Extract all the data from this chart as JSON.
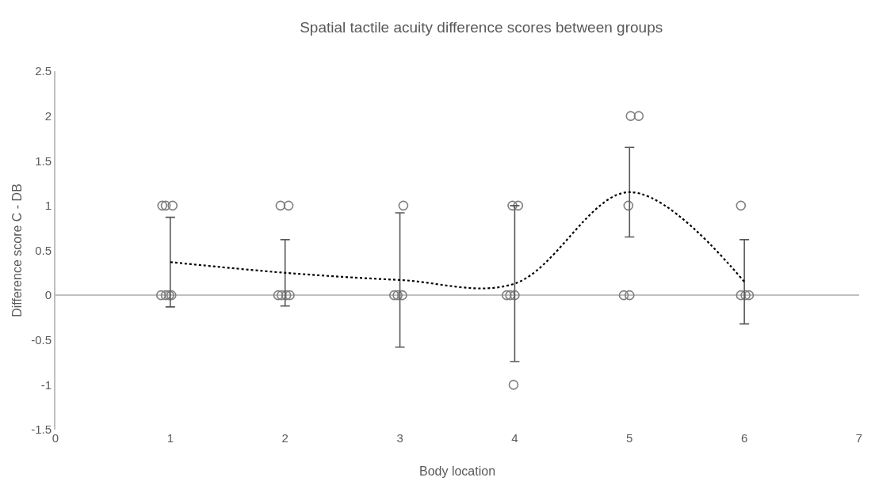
{
  "chart_data": {
    "type": "scatter",
    "title": "Spatial tactile acuity difference scores between groups",
    "xlabel": "Body location",
    "ylabel": "Difference score C - DB",
    "xlim": [
      0,
      7
    ],
    "xticks": [
      0,
      1,
      2,
      3,
      4,
      5,
      6,
      7
    ],
    "ylim": [
      -1.5,
      2.5
    ],
    "yticks": [
      -1.5,
      -1,
      -0.5,
      0,
      0.5,
      1,
      1.5,
      2,
      2.5
    ],
    "series": [
      {
        "marker": "circle",
        "color": "#7f7f7f",
        "x": [
          0.93,
          0.96,
          1.02,
          0.92,
          0.96,
          0.99,
          1.01,
          1.96,
          2.03,
          1.94,
          1.97,
          2.01,
          2.04,
          3.03,
          2.95,
          2.98,
          3.02,
          3.98,
          4.03,
          3.93,
          3.96,
          4.0,
          3.99,
          5.01,
          5.08,
          4.99,
          4.95,
          5.0,
          5.97,
          5.97,
          6.01,
          6.04
        ],
        "values": [
          1,
          1,
          1,
          0,
          0,
          0,
          0,
          1,
          1,
          0,
          0,
          0,
          0,
          1,
          0,
          0,
          0,
          1,
          1,
          0,
          0,
          0,
          -1,
          2,
          2,
          1,
          0,
          0,
          1,
          0,
          0,
          0
        ]
      },
      {
        "type": "line",
        "marker": "none",
        "line_style": "dotted",
        "color": "#000000",
        "x": [
          1,
          2,
          3,
          4,
          5,
          6
        ],
        "values": [
          0.37,
          0.25,
          0.17,
          0.13,
          1.15,
          0.15
        ],
        "errors": [
          0.5,
          0.37,
          0.75,
          0.87,
          0.5,
          0.47
        ]
      }
    ]
  }
}
